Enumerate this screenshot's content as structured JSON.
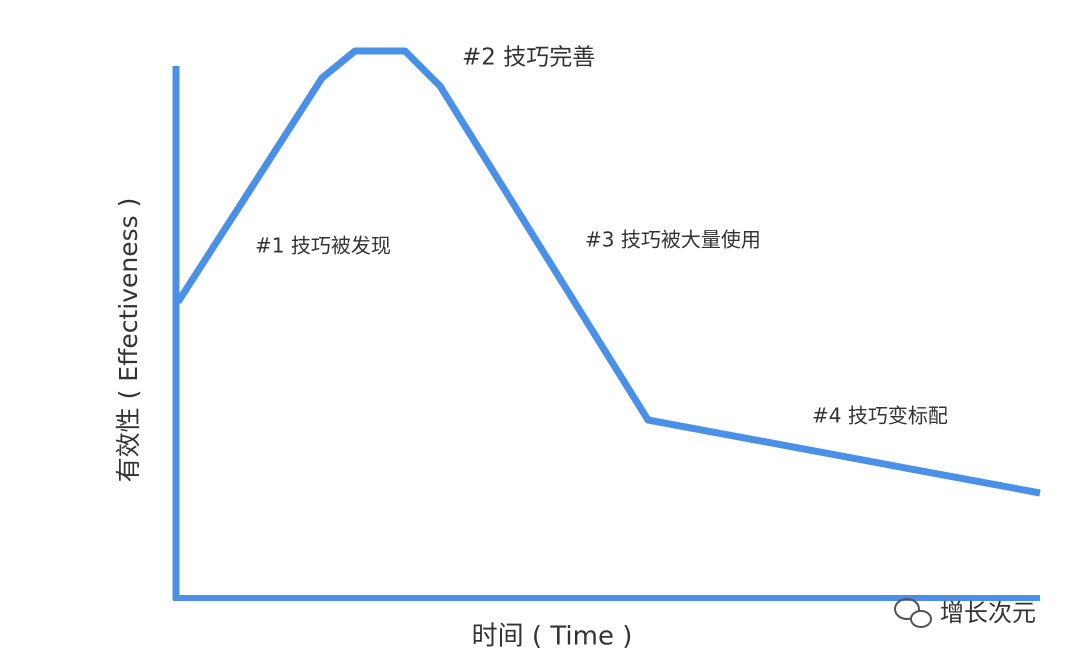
{
  "axes": {
    "y_label": "有效性 ( Effectiveness )",
    "x_label": "时间 ( Time )"
  },
  "annotations": [
    "#1 技巧被发现",
    "#2 技巧完善",
    "#3 技巧被大量使用",
    "#4 技巧变标配"
  ],
  "watermark": "增长次元"
}
